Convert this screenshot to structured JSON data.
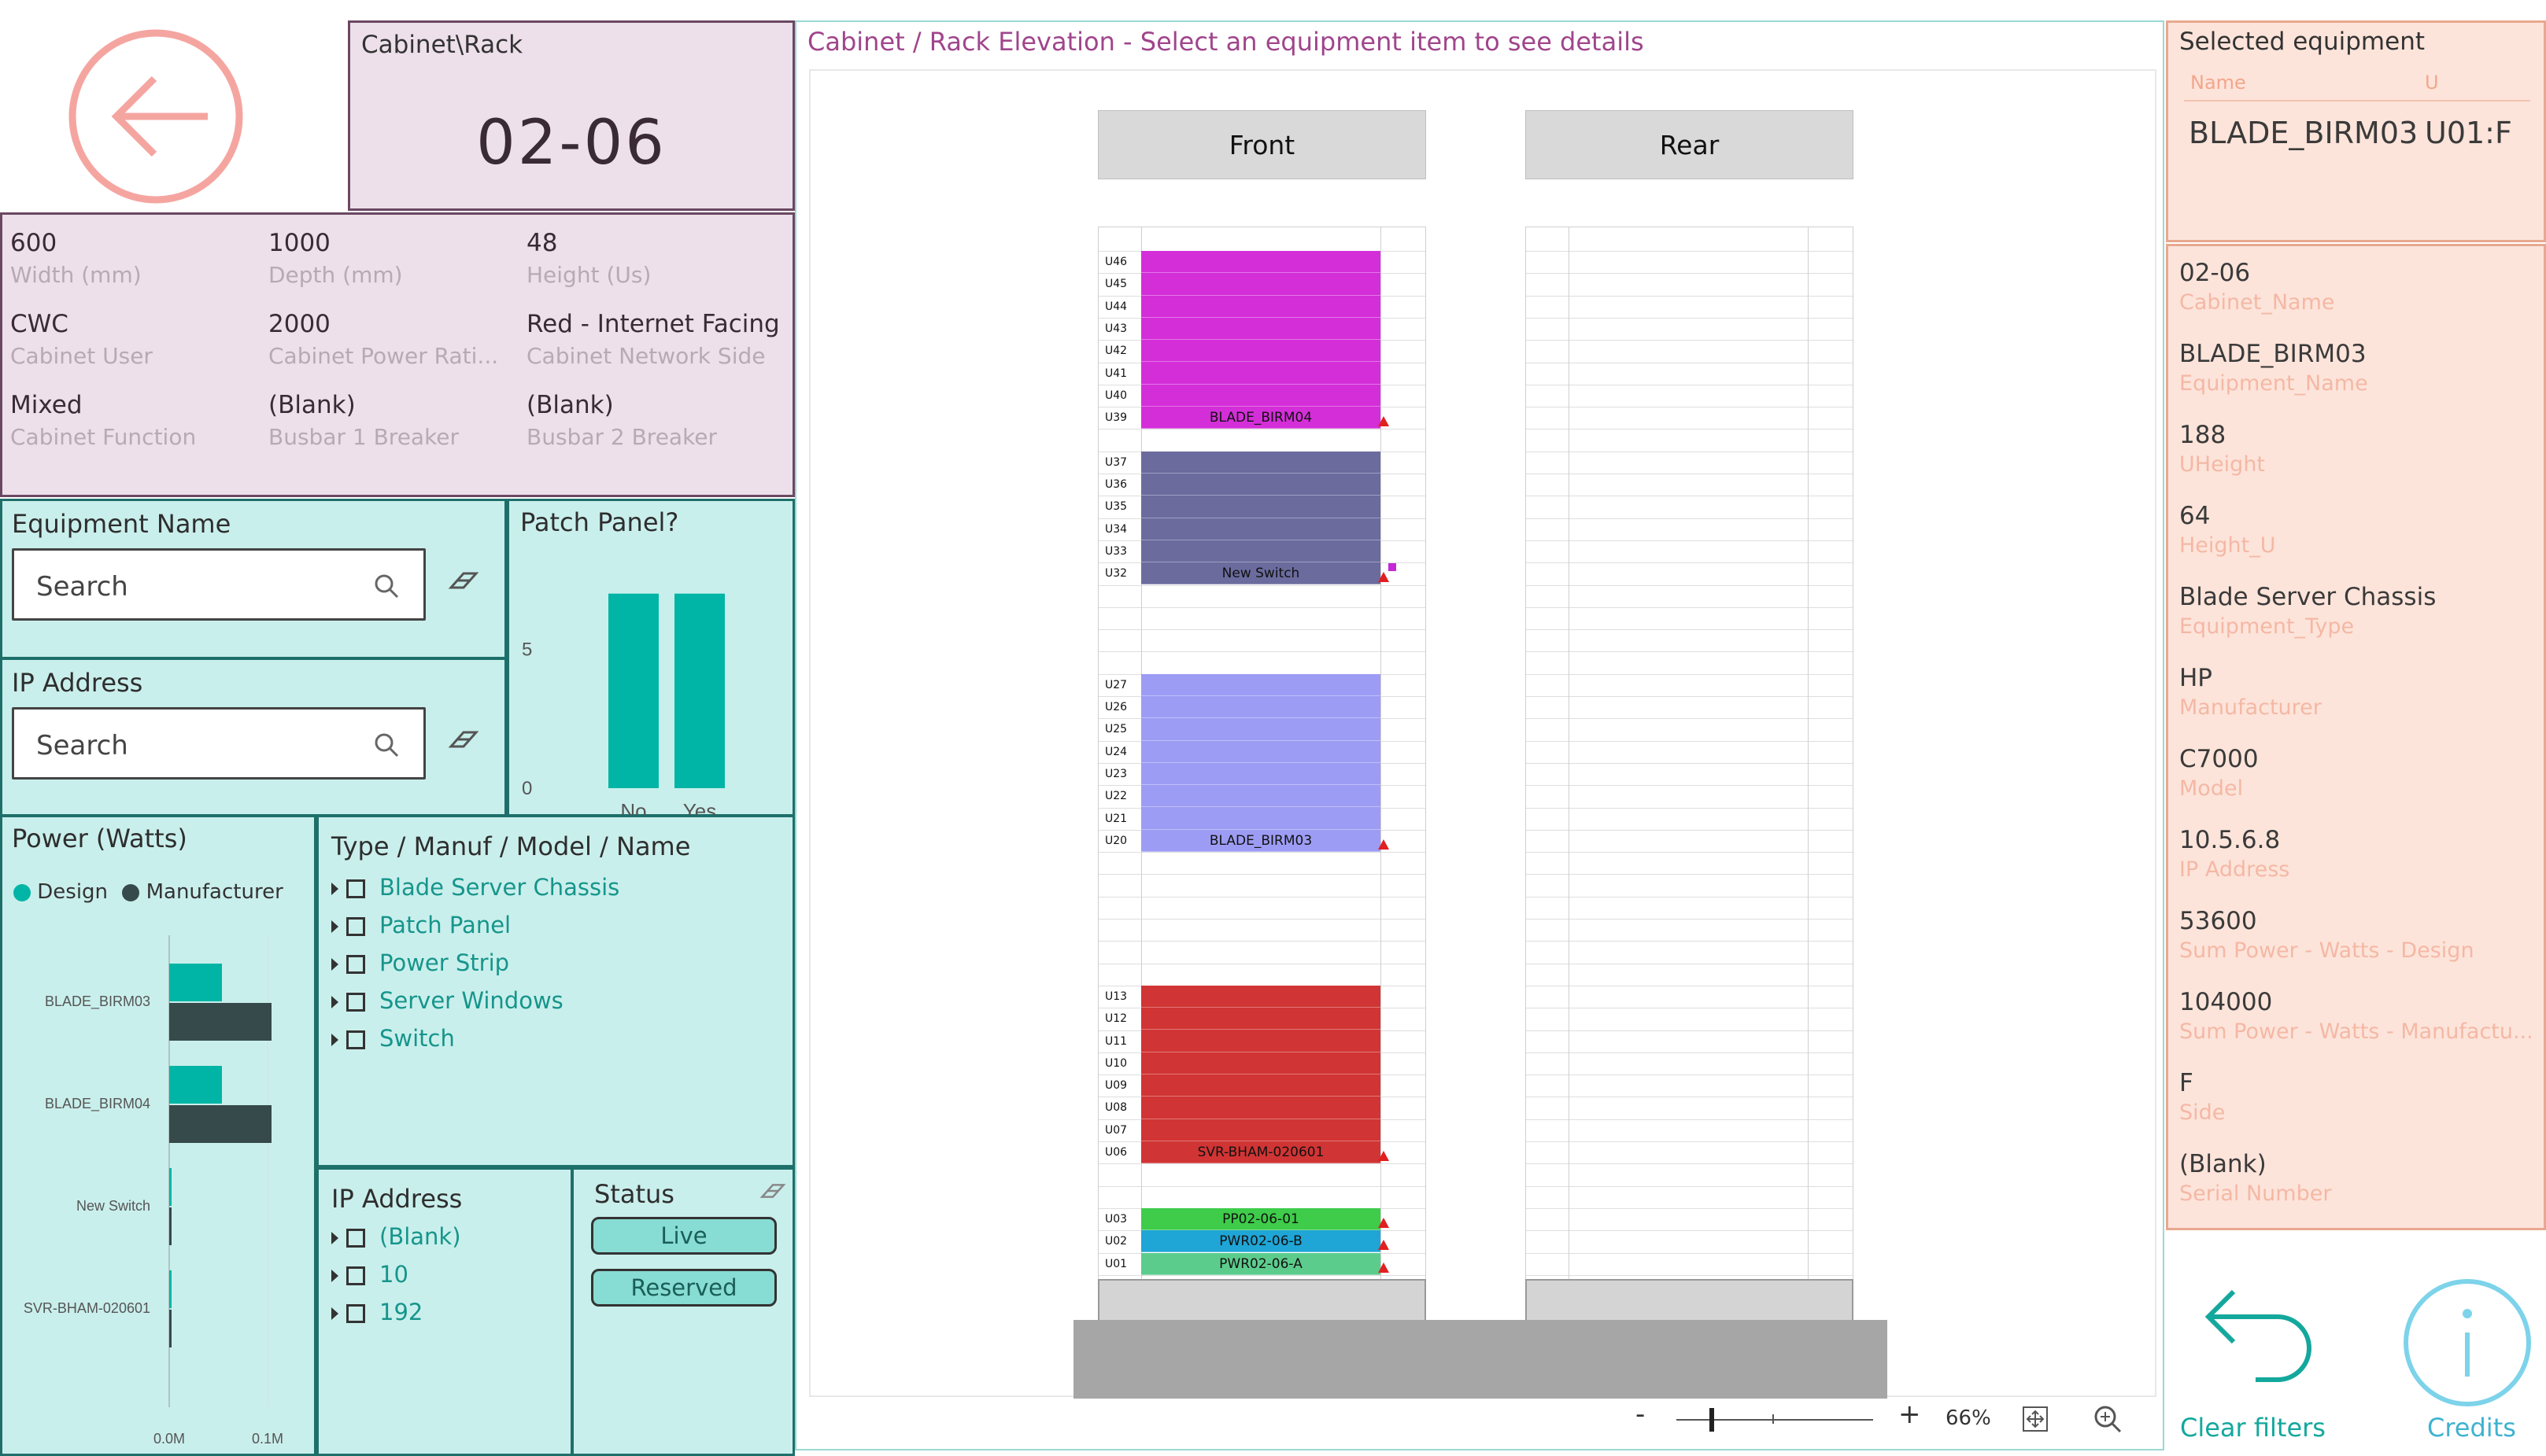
{
  "cabinet_card": {
    "label": "Cabinet\\Rack",
    "value": "02-06"
  },
  "stats": [
    {
      "value": "600",
      "key": "Width (mm)"
    },
    {
      "value": "1000",
      "key": "Depth (mm)"
    },
    {
      "value": "48",
      "key": "Height (Us)"
    },
    {
      "value": "CWC",
      "key": "Cabinet User"
    },
    {
      "value": "2000",
      "key": "Cabinet Power Rati..."
    },
    {
      "value": "Red - Internet Facing",
      "key": "Cabinet Network Side"
    },
    {
      "value": "Mixed",
      "key": "Cabinet Function"
    },
    {
      "value": "(Blank)",
      "key": "Busbar 1 Breaker"
    },
    {
      "value": "(Blank)",
      "key": "Busbar 2 Breaker"
    }
  ],
  "equipment_name": {
    "title": "Equipment Name",
    "placeholder": "Search"
  },
  "ip_search": {
    "title": "IP Address",
    "placeholder": "Search"
  },
  "patch_panel": {
    "title": "Patch Panel?"
  },
  "power": {
    "title": "Power (Watts)",
    "legend": [
      "Design",
      "Manufacturer"
    ]
  },
  "type_filter": {
    "title": "Type / Manuf / Model / Name",
    "items": [
      "Blade Server Chassis",
      "Patch Panel",
      "Power Strip",
      "Server Windows",
      "Switch"
    ]
  },
  "ip_filter": {
    "title": "IP Address",
    "items": [
      "(Blank)",
      "10",
      "192"
    ]
  },
  "status": {
    "title": "Status",
    "buttons": [
      "Live",
      "Reserved"
    ]
  },
  "elevation": {
    "title": "Cabinet /  Rack Elevation - Select an equipment item to see details",
    "front": "Front",
    "rear": "Rear",
    "zoom": {
      "minus": "-",
      "plus": "+",
      "level": "66%"
    },
    "units": [
      "U46",
      "U45",
      "U44",
      "U43",
      "U42",
      "U41",
      "U40",
      "U39",
      "U37",
      "U36",
      "U35",
      "U34",
      "U33",
      "U32",
      "U27",
      "U26",
      "U25",
      "U24",
      "U23",
      "U22",
      "U21",
      "U20",
      "U13",
      "U12",
      "U11",
      "U10",
      "U09",
      "U08",
      "U07",
      "U06",
      "U03",
      "U02",
      "U01"
    ],
    "equipment": [
      {
        "name": "BLADE_BIRM04",
        "top": 46,
        "bottom": 39,
        "color": "#d42ed9"
      },
      {
        "name": "New Switch",
        "top": 37,
        "bottom": 32,
        "color": "#6b6b9e"
      },
      {
        "name": "BLADE_BIRM03",
        "top": 27,
        "bottom": 20,
        "color": "#9d9cf4"
      },
      {
        "name": "SVR-BHAM-020601",
        "top": 13,
        "bottom": 6,
        "color": "#d13434"
      },
      {
        "name": "PP02-06-01",
        "top": 3,
        "bottom": 3,
        "color": "#3ecc4a"
      },
      {
        "name": "PWR02-06-B",
        "top": 2,
        "bottom": 2,
        "color": "#1fa5d6"
      },
      {
        "name": "PWR02-06-A",
        "top": 1,
        "bottom": 1,
        "color": "#5ccc8c"
      }
    ]
  },
  "selected": {
    "title": "Selected equipment",
    "col_name": "Name",
    "col_u": "U",
    "name": "BLADE_BIRM03",
    "u": "U01:F"
  },
  "details": [
    {
      "value": "02-06",
      "key": "Cabinet_Name"
    },
    {
      "value": "BLADE_BIRM03",
      "key": "Equipment_Name"
    },
    {
      "value": "188",
      "key": "UHeight"
    },
    {
      "value": "64",
      "key": "Height_U"
    },
    {
      "value": "Blade Server Chassis",
      "key": "Equipment_Type"
    },
    {
      "value": "HP",
      "key": "Manufacturer"
    },
    {
      "value": "C7000",
      "key": "Model"
    },
    {
      "value": "10.5.6.8",
      "key": "IP Address"
    },
    {
      "value": "53600",
      "key": "Sum Power - Watts - Design"
    },
    {
      "value": "104000",
      "key": "Sum Power - Watts - Manufactu..."
    },
    {
      "value": "F",
      "key": "Side"
    },
    {
      "value": "(Blank)",
      "key": "Serial Number"
    }
  ],
  "actions": {
    "clear": "Clear filters",
    "credits": "Credits"
  },
  "chart_data": [
    {
      "type": "bar",
      "title": "Patch Panel?",
      "categories": [
        "No",
        "Yes"
      ],
      "values": [
        7,
        7
      ],
      "yticks": [
        "0",
        "5"
      ],
      "color": "#00b5a5"
    },
    {
      "type": "bar",
      "orientation": "horizontal",
      "title": "Power (Watts)",
      "categories": [
        "BLADE_BIRM03",
        "BLADE_BIRM04",
        "New Switch",
        "SVR-BHAM-020601"
      ],
      "series": [
        {
          "name": "Design",
          "values": [
            53600,
            53600,
            2000,
            2000
          ],
          "color": "#00b5a5"
        },
        {
          "name": "Manufacturer",
          "values": [
            104000,
            104000,
            1000,
            1000
          ],
          "color": "#36494b"
        }
      ],
      "xticks": [
        "0.0M",
        "0.1M"
      ]
    }
  ]
}
